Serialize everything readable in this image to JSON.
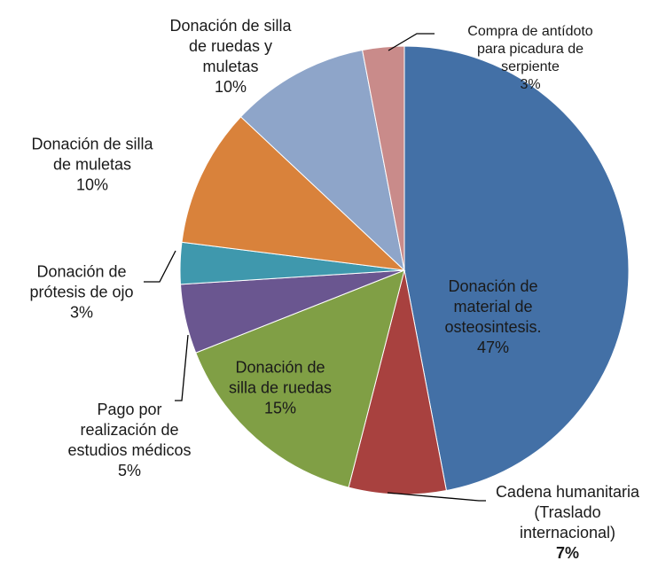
{
  "chart_data": {
    "type": "pie",
    "categories": [
      "Donación de material de osteosintesis.",
      "Cadena humanitaria (Traslado internacional)",
      "Donación de silla de ruedas",
      "Pago por realización de estudios médicos",
      "Donación de prótesis de ojo",
      "Donación de silla de muletas",
      "Donación de silla de ruedas y muletas",
      "Compra de antídoto para picadura de serpiente"
    ],
    "values": [
      47,
      7,
      15,
      5,
      3,
      10,
      10,
      3
    ],
    "value_labels": [
      "47%",
      "7%",
      "15%",
      "5%",
      "3%",
      "10%",
      "10%",
      "3%"
    ],
    "colors": [
      "#4370a6",
      "#a8413f",
      "#809f45",
      "#6a5690",
      "#3f98ad",
      "#d9823b",
      "#8ea5c9",
      "#c98b8a"
    ]
  }
}
